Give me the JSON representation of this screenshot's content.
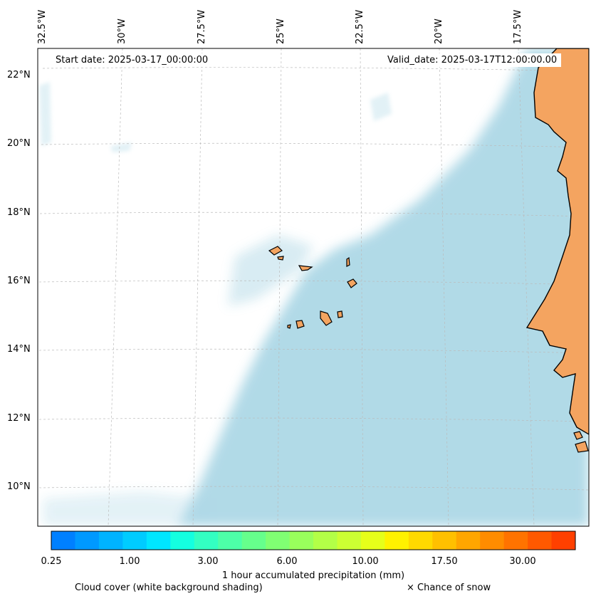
{
  "map": {
    "start_date": "Start date: 2025-03-17_00:00:00",
    "valid_date": "Valid_date: 2025-03-17T12:00:00.00",
    "lon_labels": [
      "32.5°W",
      "30°W",
      "27.5°W",
      "25°W",
      "22.5°W",
      "20°W",
      "17.5°W"
    ],
    "lat_labels": [
      "22°N",
      "20°N",
      "18°N",
      "16°N",
      "14°N",
      "12°N",
      "10°N"
    ],
    "land_color": "#f4a460",
    "cloud_color": "#add8e6",
    "gridlines": true
  },
  "colorbar": {
    "title": "1 hour accumulated precipitation (mm)",
    "ticks": [
      "0.25",
      "1.00",
      "3.00",
      "6.00",
      "10.00",
      "17.50",
      "30.00"
    ],
    "colors": [
      "#0080ff",
      "#0099ff",
      "#00b3ff",
      "#00ccff",
      "#00e6ff",
      "#14ffe0",
      "#33ffc2",
      "#4dffa8",
      "#66ff8c",
      "#80ff73",
      "#99ff5c",
      "#b3ff47",
      "#ccff33",
      "#e6ff1a",
      "#fff200",
      "#ffd900",
      "#ffc000",
      "#ffa600",
      "#ff8c00",
      "#ff7300",
      "#ff5900",
      "#ff4000"
    ]
  },
  "legend": {
    "cloud_note": "Cloud cover (white background shading)",
    "snow_note": "× Chance of snow"
  }
}
